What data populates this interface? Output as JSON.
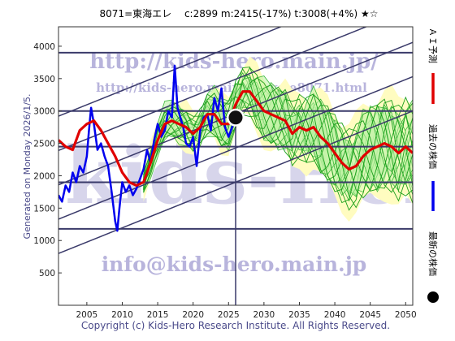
{
  "title": "8071=東海エレ　 c:2899  m:2415(-17%)  t:3008(+4%)  ★☆",
  "generated_label": "Generated on Monday 2026/1/5.",
  "copyright": "Copyright (c) Kids-Hero Research Institute. All Rights Reserved.",
  "watermarks": {
    "url_main": "http://kids-hero.main.jp/",
    "url_sub": "http://kids-hero.main.jp/cycle8071.html",
    "email": "info@kids-hero.main.jp"
  },
  "legend": {
    "ai_forecast": "ＡＩ予測",
    "past_price": "過去の株価",
    "latest_price": "最新の株価",
    "colors": {
      "ai_forecast": "#e00000",
      "past_price": "#0000ee",
      "latest_price": "#000000"
    }
  },
  "chart_data": {
    "type": "line",
    "xlim": [
      2001,
      2051
    ],
    "ylim": [
      0,
      4300
    ],
    "x_ticks": [
      2005,
      2010,
      2015,
      2020,
      2025,
      2030,
      2035,
      2040,
      2045,
      2050
    ],
    "y_ticks": [
      500,
      1000,
      1500,
      2000,
      2500,
      3000,
      3500,
      4000
    ],
    "latest_point": {
      "x": 2026.0,
      "y": 2899
    },
    "horizontal_levels": [
      3900,
      3000,
      2450,
      1900,
      1180
    ],
    "trend_channels": [
      {
        "x": [
          2001,
          2051
        ],
        "y": [
          800,
          3000
        ]
      },
      {
        "x": [
          2001,
          2051
        ],
        "y": [
          1330,
          3530
        ]
      },
      {
        "x": [
          2001,
          2051
        ],
        "y": [
          1860,
          4060
        ]
      },
      {
        "x": [
          2001,
          2051
        ],
        "y": [
          2390,
          4590
        ]
      },
      {
        "x": [
          2001,
          2051
        ],
        "y": [
          2920,
          5120
        ]
      }
    ],
    "series": [
      {
        "name": "過去の株価",
        "color": "#0000ee",
        "x": [
          2001.0,
          2001.5,
          2002.0,
          2002.5,
          2003.0,
          2003.5,
          2004.0,
          2004.5,
          2005.0,
          2005.3,
          2005.6,
          2006.0,
          2006.5,
          2007.0,
          2007.5,
          2008.0,
          2008.5,
          2009.0,
          2009.3,
          2009.6,
          2010.0,
          2010.5,
          2011.0,
          2011.5,
          2012.0,
          2012.5,
          2013.0,
          2013.5,
          2014.0,
          2014.5,
          2015.0,
          2015.5,
          2016.0,
          2016.5,
          2017.0,
          2017.4,
          2017.8,
          2018.2,
          2018.6,
          2019.0,
          2019.5,
          2020.0,
          2020.5,
          2021.0,
          2021.5,
          2022.0,
          2022.5,
          2023.0,
          2023.5,
          2024.0,
          2024.5,
          2025.0,
          2025.5,
          2026.0
        ],
        "y": [
          1700,
          1600,
          1850,
          1750,
          2050,
          1900,
          2150,
          2050,
          2300,
          2700,
          3050,
          2800,
          2400,
          2500,
          2300,
          2150,
          1750,
          1300,
          1150,
          1500,
          1900,
          1750,
          1850,
          1700,
          1800,
          1950,
          2100,
          2400,
          2200,
          2550,
          2800,
          2600,
          2700,
          3000,
          2900,
          3700,
          3050,
          2900,
          2750,
          2500,
          2450,
          2600,
          2150,
          2700,
          2900,
          2950,
          2700,
          3200,
          3000,
          3350,
          2750,
          2600,
          2750,
          2899
        ]
      },
      {
        "name": "ＡＩ予測",
        "color": "#e00000",
        "x": [
          2001,
          2002,
          2003,
          2004,
          2005,
          2006,
          2007,
          2008,
          2009,
          2010,
          2011,
          2012,
          2013,
          2014,
          2015,
          2016,
          2017,
          2018,
          2019,
          2020,
          2021,
          2022,
          2023,
          2024,
          2025,
          2026,
          2027,
          2028,
          2029,
          2030,
          2031,
          2032,
          2033,
          2034,
          2035,
          2036,
          2037,
          2038,
          2039,
          2040,
          2041,
          2042,
          2043,
          2044,
          2045,
          2046,
          2047,
          2048,
          2049,
          2050,
          2051
        ],
        "y": [
          2550,
          2450,
          2400,
          2700,
          2800,
          2850,
          2700,
          2500,
          2300,
          2050,
          1900,
          1850,
          1900,
          2200,
          2550,
          2800,
          2850,
          2800,
          2750,
          2650,
          2750,
          2950,
          2950,
          2800,
          2800,
          3100,
          3300,
          3300,
          3150,
          3000,
          2950,
          2900,
          2850,
          2650,
          2750,
          2700,
          2750,
          2600,
          2500,
          2350,
          2200,
          2100,
          2150,
          2300,
          2400,
          2450,
          2500,
          2450,
          2350,
          2450,
          2350
        ]
      }
    ]
  }
}
